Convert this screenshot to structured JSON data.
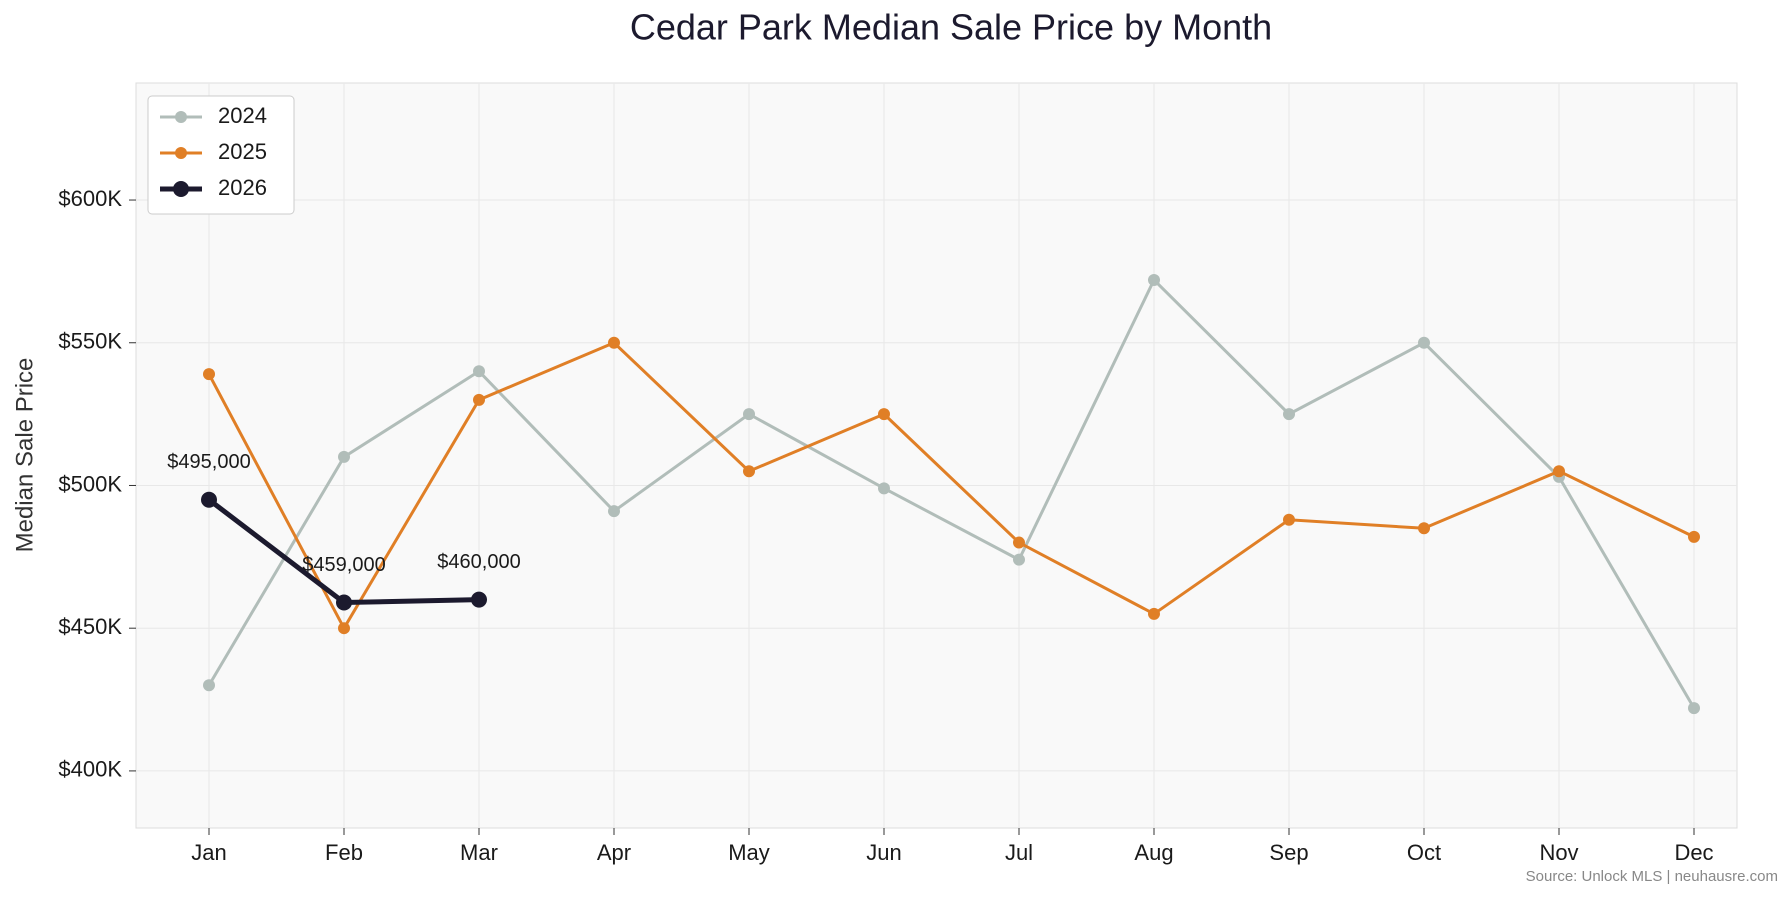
{
  "chart_data": {
    "type": "line",
    "title": "Cedar Park Median Sale Price by Month",
    "ylabel": "Median Sale Price",
    "source": "Source: Unlock MLS | neuhausre.com",
    "categories": [
      "Jan",
      "Feb",
      "Mar",
      "Apr",
      "May",
      "Jun",
      "Jul",
      "Aug",
      "Sep",
      "Oct",
      "Nov",
      "Dec"
    ],
    "series": [
      {
        "name": "2024",
        "color": "#b1bdb9",
        "values": [
          430000,
          510000,
          540000,
          491000,
          525000,
          499000,
          474000,
          572000,
          525000,
          550000,
          503000,
          422000
        ]
      },
      {
        "name": "2025",
        "color": "#e07f26",
        "values": [
          539000,
          450000,
          530000,
          550000,
          505000,
          525000,
          480000,
          455000,
          488000,
          485000,
          505000,
          482000
        ]
      },
      {
        "name": "2026",
        "color": "#1c1a2e",
        "values": [
          495000,
          459000,
          460000,
          null,
          null,
          null,
          null,
          null,
          null,
          null,
          null,
          null
        ],
        "value_labels": [
          "$495,000",
          "$459,000",
          "$460,000",
          null,
          null,
          null,
          null,
          null,
          null,
          null,
          null,
          null
        ]
      }
    ],
    "ylim": [
      380000,
      641000
    ],
    "yticks": [
      {
        "value": 400000,
        "label": "$400K"
      },
      {
        "value": 450000,
        "label": "$450K"
      },
      {
        "value": 500000,
        "label": "$500K"
      },
      {
        "value": 550000,
        "label": "$550K"
      },
      {
        "value": 600000,
        "label": "$600K"
      }
    ],
    "grid": true,
    "legend": "upper-left"
  }
}
